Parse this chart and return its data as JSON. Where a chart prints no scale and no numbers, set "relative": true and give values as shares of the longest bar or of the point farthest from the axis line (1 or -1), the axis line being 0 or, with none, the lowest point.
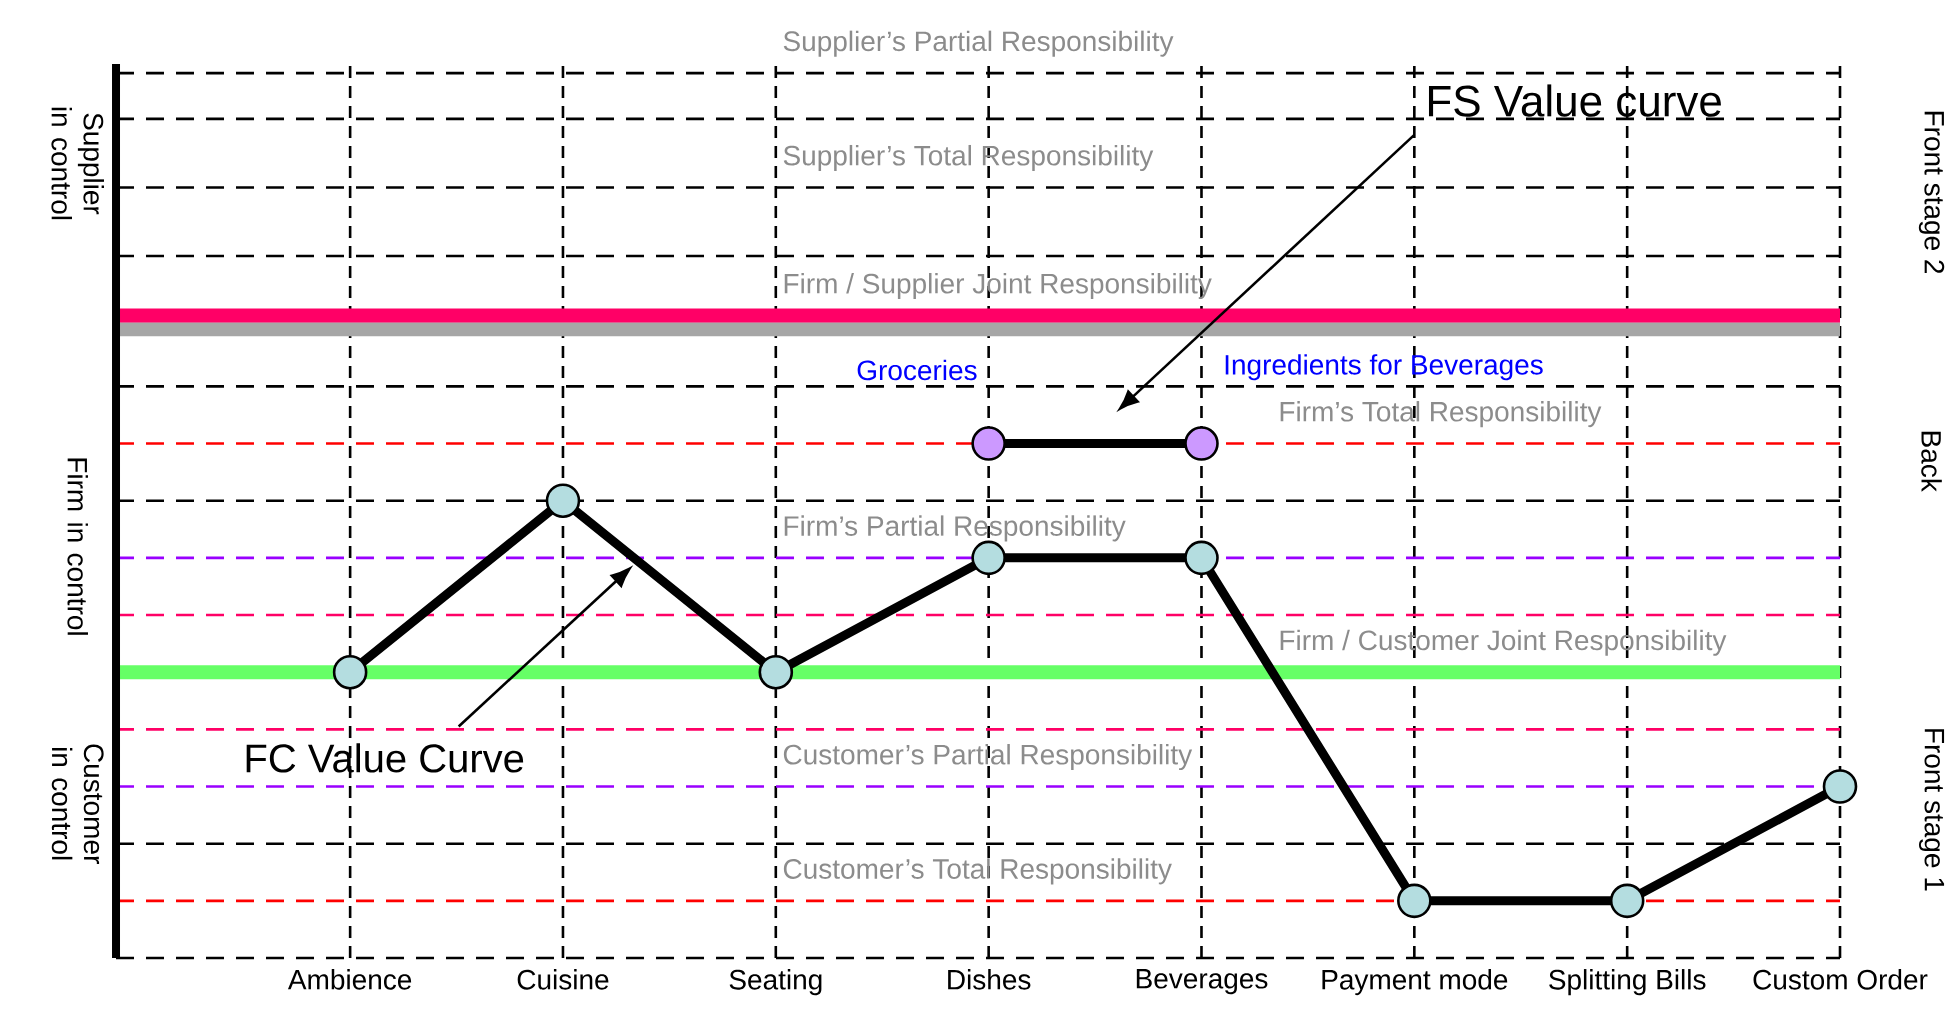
{
  "chart_data": {
    "type": "line",
    "relative": true,
    "categories": [
      "Ambience",
      "Cuisine",
      "Seating",
      "Dishes",
      "Beverages",
      "Payment mode",
      "Splitting Bills",
      "Custom Order"
    ],
    "series": [
      {
        "color": "#000000",
        "colors": [
          "#b4dde0",
          "#b4dde0",
          "#b4dde0",
          "#b4dde0",
          "#b4dde0",
          "#b4dde0",
          "#b4dde0",
          "#b4dde0"
        ],
        "values": [
          0.5,
          0.875,
          0.5,
          0.75,
          0.75,
          0,
          0,
          0.25
        ]
      },
      {
        "color": "#000000",
        "colors": [
          "#cc99ff",
          "#cc99ff"
        ],
        "x": [
          "Dishes",
          "Beverages"
        ],
        "values": [
          1,
          1
        ]
      }
    ],
    "annotations": [
      "Groceries",
      "Ingredients for Beverages",
      "Supplier in control",
      "Firm in control",
      "Customer in control",
      "Front stage 2",
      "Back",
      "Front stage 1",
      "FS Value curve",
      "FC Value Curve"
    ],
    "ref_lines": [
      {
        "axis": "y",
        "value": -0.125,
        "color": "#000000",
        "line_style": "dashed"
      },
      {
        "axis": "y",
        "value": 0,
        "label": "Customer’s Total Responsibility",
        "color": "#ff0000",
        "line_style": "dashed"
      },
      {
        "axis": "y",
        "value": 0.125,
        "color": "#000000",
        "line_style": "dashed"
      },
      {
        "axis": "y",
        "value": 0.25,
        "label": "Customer’s Partial Responsibility",
        "color": "#9900ff",
        "line_style": "dashed"
      },
      {
        "axis": "y",
        "value": 0.375,
        "color": "#ff0066",
        "line_style": "dashed"
      },
      {
        "axis": "y",
        "value": 0.5,
        "label": "Firm / Customer Joint Responsibility",
        "color": "#66ff66",
        "line_style": "solid"
      },
      {
        "axis": "y",
        "value": 0.625,
        "color": "#ff0066",
        "line_style": "dashed"
      },
      {
        "axis": "y",
        "value": 0.75,
        "label": "Firm’s Partial Responsibility",
        "color": "#9900ff",
        "line_style": "dashed"
      },
      {
        "axis": "y",
        "value": 0.875,
        "color": "#000000",
        "line_style": "dashed"
      },
      {
        "axis": "y",
        "value": 1,
        "label": "Firm’s Total Responsibility",
        "color": "#ff0000",
        "line_style": "dashed"
      },
      {
        "axis": "y",
        "value": 1.125,
        "color": "#000000",
        "line_style": "dashed"
      },
      {
        "axis": "y",
        "value": 1.25,
        "color": "#a6a6a6",
        "line_style": "solid"
      },
      {
        "axis": "y",
        "value": 1.28,
        "label": "Firm / Supplier Joint Responsibility",
        "color": "#ff0066",
        "line_style": "solid"
      },
      {
        "axis": "y",
        "value": 1.41,
        "color": "#000000",
        "line_style": "dashed"
      },
      {
        "axis": "y",
        "value": 1.56,
        "label": "Supplier’s Total Responsibility",
        "color": "#000000",
        "line_style": "dashed"
      },
      {
        "axis": "y",
        "value": 1.71,
        "color": "#000000",
        "line_style": "dashed"
      },
      {
        "axis": "y",
        "value": 1.81,
        "label": "Supplier’s Partial Responsibility",
        "color": "#000000",
        "line_style": "dashed"
      }
    ],
    "grid": "x",
    "marker": "circle",
    "line_style": "solid"
  }
}
